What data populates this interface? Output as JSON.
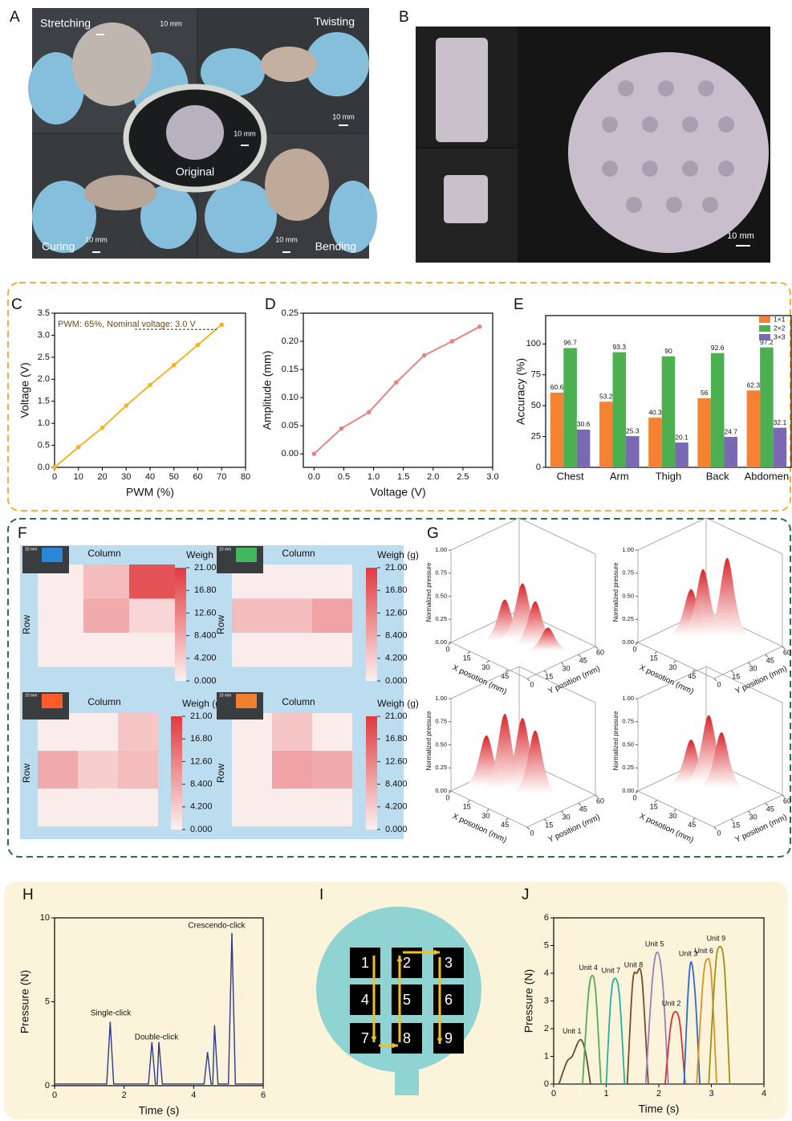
{
  "panel_labels": [
    "A",
    "B",
    "C",
    "D",
    "E",
    "F",
    "G",
    "H",
    "I",
    "J"
  ],
  "photo_a": {
    "labels": [
      "Stretching",
      "Twisting",
      "Curing",
      "Bending",
      "Original"
    ],
    "scale_bars": [
      "10 mm",
      "10 mm",
      "10 mm",
      "10 mm",
      "10 mm"
    ]
  },
  "photo_b": {
    "scale_bar": "10 mm"
  },
  "diagram_i": {
    "units": [
      "1",
      "2",
      "3",
      "4",
      "5",
      "6",
      "7",
      "8",
      "9"
    ]
  },
  "chart_data": [
    {
      "type": "line",
      "x": [
        0,
        10,
        20,
        30,
        40,
        50,
        60,
        70
      ],
      "values": [
        0,
        0.46,
        0.9,
        1.4,
        1.87,
        2.32,
        2.78,
        3.24
      ],
      "color": "#f5b324",
      "markers": true,
      "xlim": [
        0,
        80
      ],
      "xticks": [
        0,
        10,
        20,
        30,
        40,
        50,
        60,
        70,
        80
      ],
      "ylim": [
        0,
        3.5
      ],
      "yticks": [
        {
          "value": 0,
          "label": "0.0"
        },
        0.5,
        {
          "value": 1,
          "label": "1.0"
        },
        1.5,
        {
          "value": 2,
          "label": "2.0"
        },
        2.5,
        {
          "value": 3,
          "label": "3.0"
        },
        3.5
      ],
      "xlabel": "PWM (%)",
      "ylabel": "Voltage (V)",
      "annotation": "PWM: 65%, Nominal voltage: 3.0 V"
    },
    {
      "type": "line",
      "x": [
        0,
        0.46,
        0.92,
        1.38,
        1.85,
        2.32,
        2.78
      ],
      "values": [
        0,
        0.045,
        0.074,
        0.127,
        0.175,
        0.2,
        0.226
      ],
      "color": "#f08080",
      "markers": true,
      "xlim": [
        -0.18,
        3
      ],
      "xticks": [
        {
          "value": 0,
          "label": "0.0"
        },
        0.5,
        {
          "value": 1,
          "label": "1.0"
        },
        1.5,
        {
          "value": 2,
          "label": "2.0"
        },
        2.5,
        {
          "value": 3,
          "label": "3.0"
        }
      ],
      "ylim": [
        -0.024,
        0.25
      ],
      "yticks": [
        {
          "value": 0,
          "label": "0.00"
        },
        0.05,
        {
          "value": 0.1,
          "label": "0.10"
        },
        0.15,
        {
          "value": 0.2,
          "label": "0.20"
        },
        0.25
      ],
      "xlabel": "Voltage (V)",
      "ylabel": "Amplitude (mm)"
    },
    {
      "type": "bar",
      "categories": [
        "Chest",
        "Arm",
        "Thigh",
        "Back",
        "Abdomen"
      ],
      "series": [
        {
          "name": "1×1",
          "color": "#f58231",
          "values": [
            60.6,
            53.2,
            40.3,
            56,
            62.3
          ]
        },
        {
          "name": "2×2",
          "color": "#4caf50",
          "values": [
            96.7,
            93.3,
            90,
            92.6,
            97.2
          ]
        },
        {
          "name": "3×3",
          "color": "#7b68b5",
          "values": [
            30.6,
            25.3,
            20.1,
            24.7,
            32.1
          ]
        }
      ],
      "ylim": [
        0,
        123
      ],
      "yticks": [
        0,
        25,
        50,
        75,
        100
      ],
      "ylabel": "Accuracy (%)",
      "legend": "upper right"
    },
    {
      "type": "heatmap",
      "z": [
        [
          0.5,
          6,
          18
        ],
        [
          0.5,
          8,
          3
        ],
        [
          0.5,
          0.5,
          0.5
        ]
      ],
      "clim": [
        0,
        21
      ],
      "cticks": [
        {
          "value": 21,
          "label": "21.00"
        },
        {
          "value": 16.8,
          "label": "16.80"
        },
        {
          "value": 12.6,
          "label": "12.60"
        },
        {
          "value": 8.4,
          "label": "8.400"
        },
        {
          "value": 4.2,
          "label": "4.200"
        },
        {
          "value": 0,
          "label": "0.000"
        }
      ],
      "xlabel": "Column",
      "ylabel": "Row",
      "colorbar_label": "Weigh (g)",
      "inset_label": "10 mm"
    },
    {
      "type": "heatmap",
      "z": [
        [
          0.5,
          0.5,
          0.5
        ],
        [
          6,
          6,
          9
        ],
        [
          0.5,
          0.5,
          0.5
        ]
      ],
      "clim": [
        0,
        21
      ],
      "cticks": [
        {
          "value": 21,
          "label": "21.00"
        },
        {
          "value": 16.8,
          "label": "16.80"
        },
        {
          "value": 12.6,
          "label": "12.60"
        },
        {
          "value": 8.4,
          "label": "8.400"
        },
        {
          "value": 4.2,
          "label": "4.200"
        },
        {
          "value": 0,
          "label": "0.000"
        }
      ],
      "xlabel": "Column",
      "ylabel": "Row",
      "colorbar_label": "Weigh (g)",
      "inset_label": "10 mm"
    },
    {
      "type": "heatmap",
      "z": [
        [
          0.5,
          0.5,
          5
        ],
        [
          8,
          4,
          6
        ],
        [
          0.5,
          0.5,
          0.5
        ]
      ],
      "clim": [
        0,
        21
      ],
      "cticks": [
        {
          "value": 21,
          "label": "21.00"
        },
        {
          "value": 16.8,
          "label": "16.80"
        },
        {
          "value": 12.6,
          "label": "12.60"
        },
        {
          "value": 8.4,
          "label": "8.400"
        },
        {
          "value": 4.2,
          "label": "4.200"
        },
        {
          "value": 0,
          "label": "0.000"
        }
      ],
      "xlabel": "Column",
      "ylabel": "Row",
      "colorbar_label": "Weigh (g)",
      "inset_label": "10 mm"
    },
    {
      "type": "heatmap",
      "z": [
        [
          0.5,
          5,
          0.5
        ],
        [
          0.5,
          9,
          8
        ],
        [
          0.5,
          0.5,
          0.5
        ]
      ],
      "clim": [
        0,
        21
      ],
      "cticks": [
        {
          "value": 21,
          "label": "21.00"
        },
        {
          "value": 16.8,
          "label": "16.80"
        },
        {
          "value": 12.6,
          "label": "12.60"
        },
        {
          "value": 8.4,
          "label": "8.400"
        },
        {
          "value": 4.2,
          "label": "4.200"
        },
        {
          "value": 0,
          "label": "0.000"
        }
      ],
      "xlabel": "Column",
      "ylabel": "Row",
      "colorbar_label": "Weigh (g)",
      "inset_label": "10 mm"
    },
    {
      "type": "surface",
      "peaks": [
        {
          "x": 20,
          "y": 25,
          "z": 0.45
        },
        {
          "x": 25,
          "y": 35,
          "z": 0.6
        },
        {
          "x": 35,
          "y": 35,
          "z": 0.47
        },
        {
          "x": 45,
          "y": 35,
          "z": 0.25
        }
      ],
      "xlim": [
        0,
        60
      ],
      "ylim": [
        0,
        60
      ],
      "zlim": [
        0,
        1
      ],
      "xticks": [
        0,
        15,
        30,
        45
      ],
      "yticks": [
        0,
        15,
        30,
        45,
        60
      ],
      "zticks": [
        {
          "value": 0,
          "label": "0.00"
        },
        0.25,
        {
          "value": 0.5,
          "label": "0.50"
        },
        0.75,
        {
          "value": 1,
          "label": "1.00"
        }
      ],
      "xlabel": "X posotion (mm)",
      "ylabel": "Y position (mm)",
      "zlabel": "Normalized pressure"
    },
    {
      "type": "surface",
      "peaks": [
        {
          "x": 15,
          "y": 30,
          "z": 0.5
        },
        {
          "x": 20,
          "y": 35,
          "z": 0.72
        },
        {
          "x": 30,
          "y": 45,
          "z": 0.85
        }
      ],
      "xlim": [
        0,
        60
      ],
      "ylim": [
        0,
        60
      ],
      "zlim": [
        0,
        1
      ],
      "xticks": [
        0,
        15,
        30,
        45
      ],
      "yticks": [
        0,
        15,
        30,
        45,
        60
      ],
      "zticks": [
        {
          "value": 0,
          "label": "0.00"
        },
        0.25,
        {
          "value": 0.5,
          "label": "0.50"
        },
        0.75,
        {
          "value": 1,
          "label": "1.00"
        }
      ],
      "xlabel": "X posotion (mm)",
      "ylabel": "Y position (mm)",
      "zlabel": "Normalized pressure"
    },
    {
      "type": "surface",
      "peaks": [
        {
          "x": 10,
          "y": 20,
          "z": 0.55
        },
        {
          "x": 20,
          "y": 25,
          "z": 0.82
        },
        {
          "x": 25,
          "y": 35,
          "z": 0.75
        },
        {
          "x": 35,
          "y": 35,
          "z": 0.68
        }
      ],
      "xlim": [
        0,
        60
      ],
      "ylim": [
        0,
        60
      ],
      "zlim": [
        0,
        1
      ],
      "xticks": [
        0,
        15,
        30,
        45
      ],
      "yticks": [
        0,
        15,
        30,
        45,
        60
      ],
      "zticks": [
        {
          "value": 0,
          "label": "0.00"
        },
        0.25,
        {
          "value": 0.5,
          "label": "0.50"
        },
        0.75,
        {
          "value": 1,
          "label": "1.00"
        }
      ],
      "xlabel": "X posotion (mm)",
      "ylabel": "Y position (mm)",
      "zlabel": "Normalized pressure"
    },
    {
      "type": "surface",
      "peaks": [
        {
          "x": 15,
          "y": 30,
          "z": 0.48
        },
        {
          "x": 20,
          "y": 40,
          "z": 0.72
        },
        {
          "x": 30,
          "y": 40,
          "z": 0.6
        }
      ],
      "xlim": [
        0,
        60
      ],
      "ylim": [
        0,
        60
      ],
      "zlim": [
        0,
        1
      ],
      "xticks": [
        0,
        15,
        30,
        45
      ],
      "yticks": [
        0,
        15,
        30,
        45,
        60
      ],
      "zticks": [
        {
          "value": 0,
          "label": "0.00"
        },
        0.25,
        {
          "value": 0.5,
          "label": "0.50"
        },
        0.75,
        {
          "value": 1,
          "label": "1.00"
        }
      ],
      "xlabel": "X posotion (mm)",
      "ylabel": "Y position (mm)",
      "zlabel": "Normalized pressure"
    },
    {
      "type": "line",
      "x": [
        0,
        1.5,
        1.6,
        1.7,
        2.7,
        2.8,
        2.9,
        2.95,
        3.0,
        3.1,
        4.3,
        4.4,
        4.5,
        4.55,
        4.6,
        4.7,
        5.0,
        5.1,
        5.2,
        6
      ],
      "values": [
        0.1,
        0.1,
        3.8,
        0.1,
        0.1,
        2.6,
        0.1,
        0.1,
        2.6,
        0.1,
        0.1,
        2.0,
        0.1,
        0.1,
        3.6,
        0.1,
        0.1,
        9.1,
        0.1,
        0.1
      ],
      "color": "#2b3a8c",
      "markers": false,
      "xlim": [
        0,
        6
      ],
      "xticks": [
        0,
        2,
        4,
        6
      ],
      "ylim": [
        0,
        10
      ],
      "yticks": [
        0,
        5,
        10
      ],
      "xlabel": "Time (s)",
      "ylabel": "Pressure (N)",
      "annotations": [
        "Single-click",
        "Double-click",
        "Crescendo-click"
      ]
    },
    {
      "type": "line",
      "series": [
        {
          "name": "Unit 1",
          "color": "#6b4a3a",
          "x": [
            0.1,
            0.25,
            0.35,
            0.5,
            0.6,
            0.7
          ],
          "values": [
            0,
            0.8,
            1.0,
            1.6,
            1.2,
            0
          ]
        },
        {
          "name": "Unit 4",
          "color": "#4caf50",
          "x": [
            0.55,
            0.65,
            0.72,
            0.8,
            0.9
          ],
          "values": [
            0,
            3.0,
            3.9,
            3.3,
            0
          ]
        },
        {
          "name": "Unit 7",
          "color": "#20b2aa",
          "x": [
            1.0,
            1.08,
            1.15,
            1.25,
            1.35
          ],
          "values": [
            0,
            2.9,
            3.8,
            3.2,
            0
          ]
        },
        {
          "name": "Unit 8",
          "color": "#7a4a2a",
          "x": [
            1.4,
            1.5,
            1.58,
            1.68,
            1.8
          ],
          "values": [
            0,
            3.6,
            4.0,
            3.8,
            0
          ]
        },
        {
          "name": "Unit 5",
          "color": "#9b7cc0",
          "x": [
            1.75,
            1.88,
            1.98,
            2.08,
            2.18
          ],
          "values": [
            0,
            3.8,
            4.75,
            3.5,
            0
          ]
        },
        {
          "name": "Unit 2",
          "color": "#e03030",
          "x": [
            2.12,
            2.22,
            2.3,
            2.4,
            2.5
          ],
          "values": [
            0,
            2.0,
            2.6,
            2.2,
            0
          ]
        },
        {
          "name": "Unit 3",
          "color": "#2a6ad0",
          "x": [
            2.48,
            2.56,
            2.62,
            2.7,
            2.78
          ],
          "values": [
            0,
            3.4,
            4.4,
            3.0,
            0
          ]
        },
        {
          "name": "Unit 6",
          "color": "#e09020",
          "x": [
            2.72,
            2.84,
            2.92,
            3.0,
            3.1
          ],
          "values": [
            0,
            3.7,
            4.5,
            3.9,
            0
          ]
        },
        {
          "name": "Unit 9",
          "color": "#a09010",
          "x": [
            2.95,
            3.07,
            3.15,
            3.25,
            3.35
          ],
          "values": [
            0,
            4.0,
            4.95,
            4.2,
            0
          ]
        }
      ],
      "xlim": [
        0,
        4
      ],
      "xticks": [
        0,
        1,
        2,
        3,
        4
      ],
      "ylim": [
        0,
        6
      ],
      "yticks": [
        0,
        1,
        2,
        3,
        4,
        5,
        6
      ],
      "xlabel": "Time (s)",
      "ylabel": "Pressure (N)"
    }
  ]
}
